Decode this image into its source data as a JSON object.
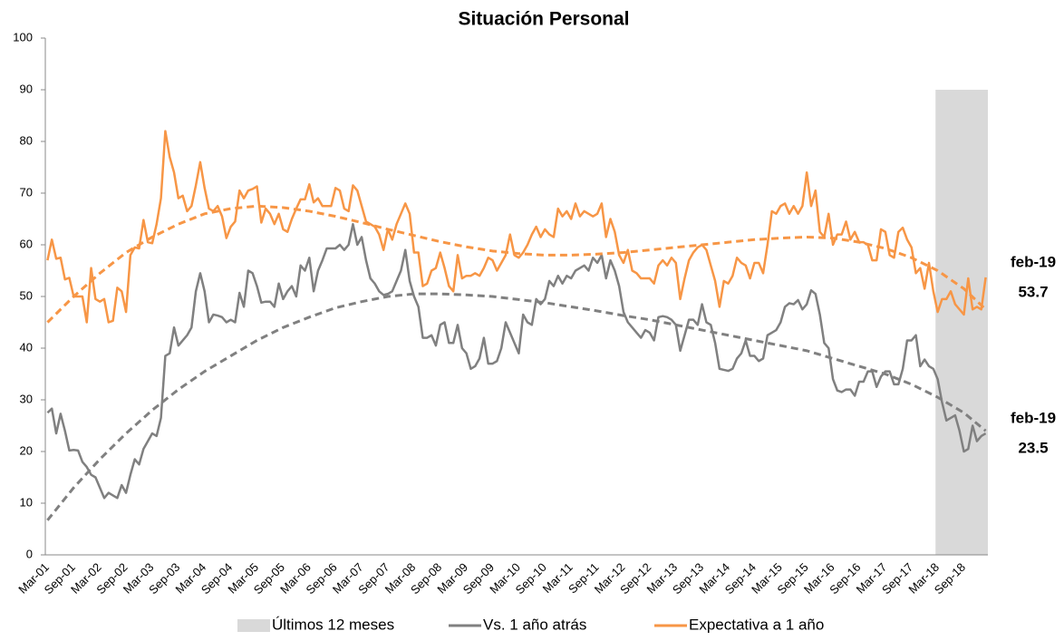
{
  "chart_data": {
    "type": "line",
    "title": "Situación Personal",
    "categories": [
      "Mar-01",
      null,
      null,
      null,
      null,
      null,
      "Sep-01",
      null,
      null,
      null,
      null,
      null,
      "Mar-02",
      null,
      null,
      null,
      null,
      null,
      "Sep-02",
      null,
      null,
      null,
      null,
      null,
      "Mar-03",
      null,
      null,
      null,
      null,
      null,
      "Sep-03",
      null,
      null,
      null,
      null,
      null,
      "Mar-04",
      null,
      null,
      null,
      null,
      null,
      "Sep-04",
      null,
      null,
      null,
      null,
      null,
      "Mar-05",
      null,
      null,
      null,
      null,
      null,
      "Sep-05",
      null,
      null,
      null,
      null,
      null,
      "Mar-06",
      null,
      null,
      null,
      null,
      null,
      "Sep-06",
      null,
      null,
      null,
      null,
      null,
      "Mar-07",
      null,
      null,
      null,
      null,
      null,
      "Sep-07",
      null,
      null,
      null,
      null,
      null,
      "Mar-08",
      null,
      null,
      null,
      null,
      null,
      "Sep-08",
      null,
      null,
      null,
      null,
      null,
      "Mar-09",
      null,
      null,
      null,
      null,
      null,
      "Sep-09",
      null,
      null,
      null,
      null,
      null,
      "Mar-10",
      null,
      null,
      null,
      null,
      null,
      "Sep-10",
      null,
      null,
      null,
      null,
      null,
      "Mar-11",
      null,
      null,
      null,
      null,
      null,
      "Sep-11",
      null,
      null,
      null,
      null,
      null,
      "Mar-12",
      null,
      null,
      null,
      null,
      null,
      "Sep-12",
      null,
      null,
      null,
      null,
      null,
      "Mar-13",
      null,
      null,
      null,
      null,
      null,
      "Sep-13",
      null,
      null,
      null,
      null,
      null,
      "Mar-14",
      null,
      null,
      null,
      null,
      null,
      "Sep-14",
      null,
      null,
      null,
      null,
      null,
      "Mar-15",
      null,
      null,
      null,
      null,
      null,
      "Sep-15",
      null,
      null,
      null,
      null,
      null,
      "Mar-16",
      null,
      null,
      null,
      null,
      null,
      "Sep-16",
      null,
      null,
      null,
      null,
      null,
      "Mar-17",
      null,
      null,
      null,
      null,
      null,
      "Sep-17",
      null,
      null,
      null,
      null,
      null,
      "Mar-18",
      null,
      null,
      null,
      null,
      null,
      "Sep-18",
      null,
      null,
      null,
      null,
      null
    ],
    "series": [
      {
        "name": "Vs. 1 año atrás",
        "color": "#808080",
        "values": [
          27.5,
          28.3,
          23.5,
          27.3,
          24,
          20.2,
          20.3,
          20.2,
          18,
          17,
          15.5,
          15,
          13,
          11,
          12,
          11.5,
          11,
          13.5,
          12,
          15.5,
          18.5,
          17.5,
          20.5,
          22,
          23.5,
          23,
          26.5,
          38.5,
          39,
          44,
          40.5,
          41.5,
          42.5,
          44,
          51,
          54.5,
          51,
          45,
          46.5,
          46.3,
          46,
          45,
          45.5,
          45,
          50.7,
          48,
          55,
          54.5,
          52,
          48.8,
          49,
          49,
          48,
          52.5,
          49.5,
          51,
          52,
          50,
          56,
          55,
          57.5,
          51,
          55,
          57,
          59.3,
          59.3,
          59.3,
          60,
          59,
          60,
          64,
          60,
          61.5,
          57,
          53.5,
          52.5,
          51,
          50.3,
          50.5,
          51,
          53,
          55,
          59,
          53,
          50,
          48,
          42,
          42,
          42.5,
          40.5,
          44.5,
          45,
          41,
          41,
          44.5,
          40,
          39,
          36,
          36.5,
          38,
          42,
          37,
          37,
          37.5,
          40,
          45,
          43,
          41,
          39,
          46.5,
          45,
          44.5,
          49.5,
          48.5,
          49.5,
          53,
          52,
          54,
          52.5,
          54,
          53.5,
          55,
          55.5,
          56,
          55,
          57.5,
          56.5,
          58,
          53.5,
          57,
          55,
          52,
          47,
          45,
          44,
          43,
          42,
          43.5,
          43,
          41.5,
          46,
          46.2,
          46,
          45.5,
          44.5,
          39.5,
          42.5,
          45.5,
          45.5,
          44.5,
          48.5,
          45,
          44.5,
          41,
          36,
          35.8,
          35.6,
          36,
          38,
          39,
          41.5,
          38.5,
          38.5,
          37.5,
          38,
          42.5,
          43,
          43.5,
          45,
          48,
          48.7,
          48.5,
          49.3,
          47.5,
          48.5,
          51.2,
          50.5,
          46.5,
          41,
          40,
          34,
          31.8,
          31.5,
          32,
          32,
          30.8,
          33.5,
          33.5,
          35.5,
          35.5,
          32.5,
          34.5,
          35.5,
          35.5,
          33,
          33,
          36,
          41.5,
          41.5,
          42.5,
          36.5,
          37.8,
          36.5,
          36,
          34,
          29.5,
          26,
          26.5,
          27,
          24,
          20,
          20.5,
          25,
          22,
          23,
          23.5
        ],
        "trend": {
          "x": [
            0,
            6,
            12,
            18,
            24,
            30,
            36,
            42,
            48,
            54,
            60,
            66,
            72,
            78,
            84,
            90,
            96,
            102,
            108,
            114,
            120,
            126,
            132,
            138,
            144,
            150,
            156,
            162,
            168,
            174,
            180,
            186,
            192,
            198,
            204,
            210,
            215
          ],
          "values": [
            6.7,
            13,
            18.5,
            23.5,
            28,
            32,
            35.5,
            38.5,
            41.5,
            44,
            46,
            47.8,
            49,
            50,
            50.5,
            50.5,
            50.3,
            50,
            49.4,
            48.8,
            48,
            47.2,
            46.3,
            45.5,
            44.5,
            43.5,
            42.5,
            41.5,
            40.5,
            39.5,
            38,
            36.5,
            35,
            33,
            30.5,
            27.5,
            24
          ]
        }
      },
      {
        "name": "Expectativa a 1 año",
        "color": "#f79646",
        "values": [
          57,
          61,
          57.3,
          57.5,
          53.3,
          53.6,
          50,
          50,
          50,
          45,
          55.5,
          49.5,
          49,
          49.5,
          45,
          45.3,
          51.7,
          51,
          47,
          58,
          59.5,
          59.3,
          64.8,
          60.5,
          60.3,
          64,
          69,
          82,
          77,
          74,
          69,
          69.5,
          66.5,
          67.5,
          71.5,
          76,
          71,
          67,
          66.5,
          67.5,
          65.5,
          61.3,
          63.5,
          64.5,
          70.5,
          69,
          70.5,
          70.8,
          71.3,
          64.3,
          67,
          66,
          64,
          66,
          63,
          62.5,
          65,
          67,
          68.8,
          68.8,
          71.7,
          68.2,
          69,
          67.5,
          67.5,
          67.5,
          71,
          70.5,
          67,
          66.5,
          71.5,
          70.5,
          67.5,
          64.5,
          64,
          63.5,
          62,
          59,
          63,
          61,
          64,
          66,
          68,
          66,
          58.5,
          58.5,
          52,
          52.5,
          55,
          55.5,
          58.5,
          55.5,
          52,
          51,
          58,
          53.5,
          54,
          54,
          54.5,
          54,
          55.5,
          57.5,
          57,
          55,
          56.5,
          58,
          62,
          58,
          57.5,
          58.5,
          60,
          62,
          63.5,
          61.5,
          63,
          62,
          61.5,
          67,
          65.5,
          66.5,
          65,
          68,
          65.5,
          66.5,
          66,
          65.5,
          66,
          68,
          61.5,
          65,
          62.5,
          58,
          56.5,
          59,
          55,
          54.5,
          53.5,
          53.5,
          53.5,
          52.5,
          56,
          57,
          56,
          57.5,
          56.5,
          49.5,
          53.5,
          57,
          58.5,
          59.5,
          60,
          59,
          56,
          53,
          48,
          53,
          52.5,
          54,
          57.5,
          56.5,
          56,
          53.5,
          56.5,
          56.5,
          54.5,
          60,
          66.5,
          66,
          67.5,
          68,
          66,
          67.5,
          66,
          67.5,
          74,
          67.5,
          70.5,
          62.5,
          61.5,
          66,
          60,
          62,
          62,
          64.5,
          61,
          62.5,
          60.5,
          60.5,
          60,
          57,
          57,
          63,
          62.5,
          58,
          57.5,
          62.5,
          63.3,
          61,
          59.5,
          54.5,
          55.5,
          51.5,
          56.5,
          51,
          47,
          49.5,
          49.5,
          51,
          48.5,
          47.5,
          46.5,
          53.5,
          47.5,
          48,
          47.5,
          53.7
        ],
        "trend": {
          "x": [
            0,
            6,
            12,
            18,
            24,
            30,
            36,
            42,
            48,
            54,
            60,
            66,
            72,
            78,
            84,
            90,
            96,
            102,
            108,
            114,
            120,
            126,
            132,
            138,
            144,
            150,
            156,
            162,
            168,
            174,
            180,
            186,
            192,
            198,
            204,
            210,
            215
          ],
          "values": [
            45,
            50,
            54.5,
            58.5,
            61.5,
            64,
            66,
            67,
            67.5,
            67.2,
            66.5,
            65.5,
            64.3,
            63,
            61.8,
            60.6,
            59.6,
            58.8,
            58.3,
            58,
            58,
            58.2,
            58.5,
            59,
            59.5,
            60,
            60.5,
            61,
            61.3,
            61.5,
            61.3,
            60.5,
            59.3,
            57.5,
            55,
            51.5,
            47.5
          ]
        }
      }
    ],
    "highlight": {
      "name": "Últimos 12 meses",
      "color": "#d9d9d9",
      "start": 204,
      "end": 215,
      "top": 90
    },
    "annotations": [
      {
        "text": "feb-19",
        "value": 53.7
      },
      {
        "text": "feb-19",
        "value": 23.5
      }
    ],
    "ylim": [
      0,
      100
    ],
    "yticks": [
      0,
      10,
      20,
      30,
      40,
      50,
      60,
      70,
      80,
      90,
      100
    ],
    "legend": "bottom"
  }
}
